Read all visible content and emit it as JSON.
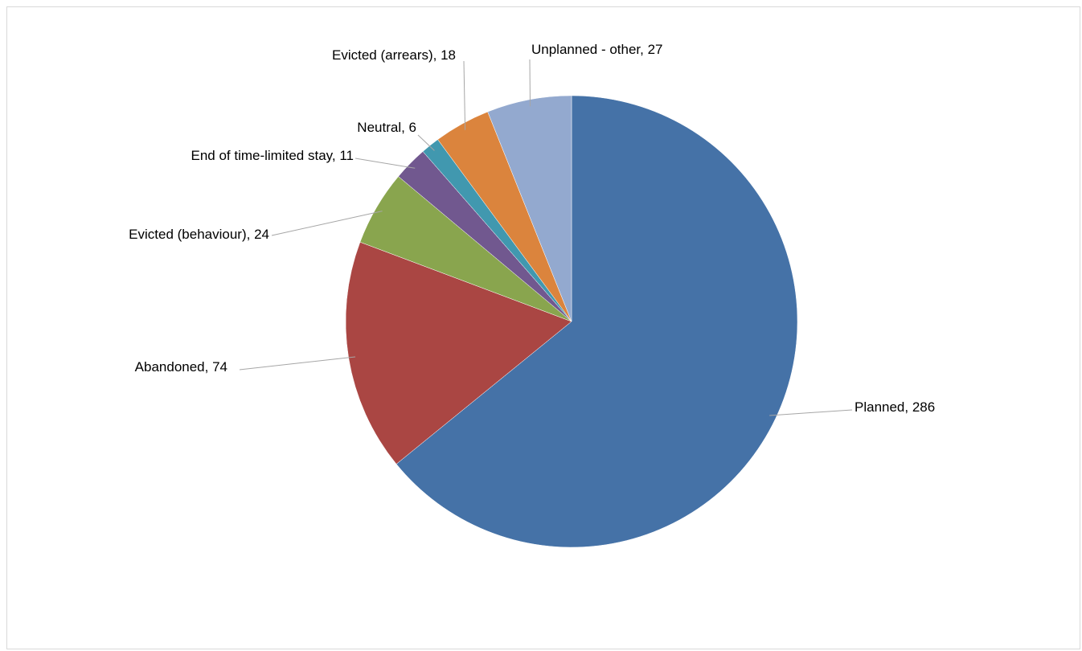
{
  "chart_data": {
    "type": "pie",
    "title": "",
    "start_angle_deg": 0,
    "direction": "clockwise",
    "slices": [
      {
        "label": "Planned",
        "value": 286,
        "color": "#4572A7",
        "label_text": "Planned, 286"
      },
      {
        "label": "Abandoned",
        "value": 74,
        "color": "#AA4643",
        "label_text": "Abandoned, 74"
      },
      {
        "label": "Evicted (behaviour)",
        "value": 24,
        "color": "#89A54E",
        "label_text": "Evicted (behaviour), 24"
      },
      {
        "label": "End of time-limited stay",
        "value": 11,
        "color": "#71588F",
        "label_text": "End of time-limited stay, 11"
      },
      {
        "label": "Neutral",
        "value": 6,
        "color": "#4198AF",
        "label_text": "Neutral, 6"
      },
      {
        "label": "Evicted (arrears)",
        "value": 18,
        "color": "#DB843D",
        "label_text": "Evicted (arrears), 18"
      },
      {
        "label": "Unplanned - other",
        "value": 27,
        "color": "#93A9CF",
        "label_text": "Unplanned - other, 27"
      }
    ],
    "legend": "none",
    "data_labels": "outside with leader lines"
  }
}
